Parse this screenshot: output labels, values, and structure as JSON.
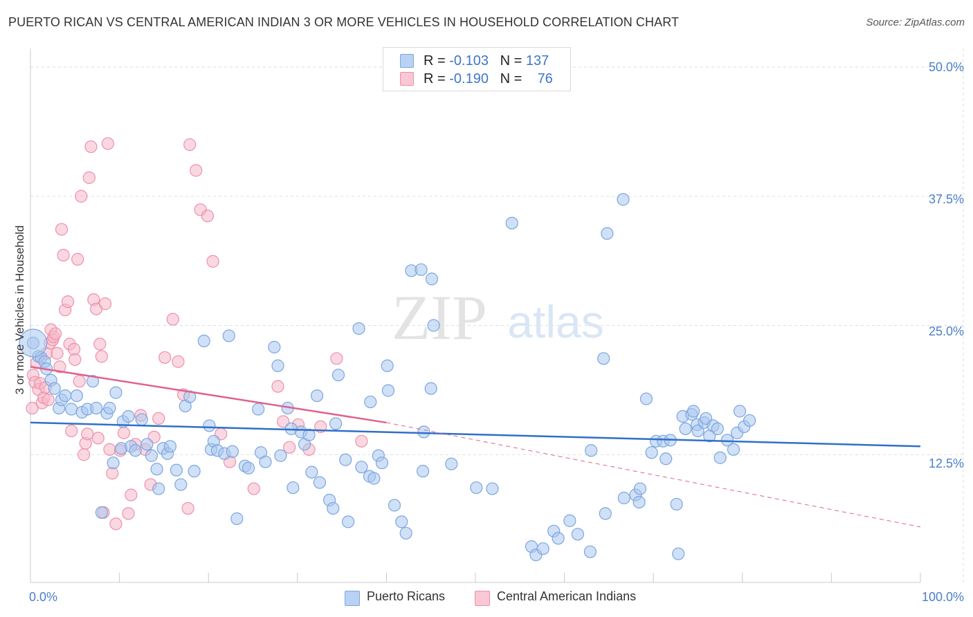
{
  "title": "PUERTO RICAN VS CENTRAL AMERICAN INDIAN 3 OR MORE VEHICLES IN HOUSEHOLD CORRELATION CHART",
  "source": "Source: ZipAtlas.com",
  "watermark": {
    "zip": "ZIP",
    "atlas": "atlas"
  },
  "legend": {
    "rows": [
      {
        "r_label": "R = ",
        "r_value": "-0.103",
        "n_label": "N = ",
        "n_value": "137"
      },
      {
        "r_label": "R = ",
        "r_value": "-0.190",
        "n_label": "N = ",
        "n_value": "76"
      }
    ]
  },
  "bottom_legend": [
    "Puerto Ricans",
    "Central American Indians"
  ],
  "colors": {
    "blue_fill": "#a9c7ef",
    "blue_stroke": "#7aa6e0",
    "blue_line": "#2f6fca",
    "pink_fill": "#f6b8c9",
    "pink_stroke": "#ee8fa9",
    "pink_line": "#e0628c",
    "tick_text": "#4a7fc9",
    "grid": "#dddddd"
  },
  "chart_data": {
    "type": "scatter",
    "title": "PUERTO RICAN VS CENTRAL AMERICAN INDIAN 3 OR MORE VEHICLES IN HOUSEHOLD CORRELATION CHART",
    "xlabel": "",
    "ylabel": "3 or more Vehicles in Household",
    "xlim": [
      0,
      100
    ],
    "ylim": [
      0,
      50
    ],
    "x_tick_labels": [
      "0.0%",
      "100.0%"
    ],
    "y_ticks": [
      12.5,
      25.0,
      37.5,
      50.0
    ],
    "y_tick_labels": [
      "12.5%",
      "25.0%",
      "37.5%",
      "50.0%"
    ],
    "grid": true,
    "legend_position": "top-center",
    "series": [
      {
        "name": "Puerto Ricans",
        "r": -0.103,
        "n": 137,
        "trend": {
          "x": [
            0,
            100
          ],
          "y": [
            15.6,
            13.3
          ]
        },
        "points": [
          [
            0.3,
            23.3
          ],
          [
            0.9,
            22.0
          ],
          [
            1.2,
            21.9
          ],
          [
            1.6,
            21.5
          ],
          [
            1.8,
            20.8
          ],
          [
            2.3,
            19.7
          ],
          [
            2.7,
            18.9
          ],
          [
            3.2,
            17.0
          ],
          [
            3.5,
            17.8
          ],
          [
            3.9,
            18.2
          ],
          [
            4.6,
            16.9
          ],
          [
            5.2,
            18.2
          ],
          [
            5.8,
            16.6
          ],
          [
            6.4,
            16.9
          ],
          [
            7.0,
            19.6
          ],
          [
            7.4,
            17.0
          ],
          [
            8.0,
            6.9
          ],
          [
            8.6,
            16.5
          ],
          [
            8.9,
            17.0
          ],
          [
            9.3,
            11.7
          ],
          [
            9.6,
            18.5
          ],
          [
            10.2,
            13.1
          ],
          [
            10.4,
            15.7
          ],
          [
            11.0,
            16.2
          ],
          [
            11.3,
            13.3
          ],
          [
            11.8,
            12.9
          ],
          [
            12.5,
            15.9
          ],
          [
            13.1,
            13.5
          ],
          [
            13.6,
            12.4
          ],
          [
            14.2,
            11.1
          ],
          [
            14.4,
            9.2
          ],
          [
            14.9,
            13.1
          ],
          [
            15.4,
            12.6
          ],
          [
            15.7,
            13.3
          ],
          [
            16.4,
            11.0
          ],
          [
            16.9,
            9.6
          ],
          [
            17.4,
            17.2
          ],
          [
            17.9,
            18.1
          ],
          [
            18.4,
            10.9
          ],
          [
            19.5,
            23.5
          ],
          [
            20.1,
            15.3
          ],
          [
            20.3,
            13.0
          ],
          [
            20.6,
            13.8
          ],
          [
            21.0,
            12.9
          ],
          [
            21.8,
            12.6
          ],
          [
            22.3,
            24.0
          ],
          [
            22.7,
            12.8
          ],
          [
            23.2,
            6.3
          ],
          [
            24.1,
            11.4
          ],
          [
            24.5,
            11.2
          ],
          [
            25.6,
            16.9
          ],
          [
            25.9,
            12.7
          ],
          [
            26.4,
            11.8
          ],
          [
            27.4,
            22.9
          ],
          [
            27.8,
            21.1
          ],
          [
            28.1,
            12.4
          ],
          [
            28.9,
            17.0
          ],
          [
            29.3,
            15.0
          ],
          [
            29.5,
            9.3
          ],
          [
            30.4,
            14.7
          ],
          [
            30.8,
            13.5
          ],
          [
            31.3,
            14.4
          ],
          [
            31.6,
            10.8
          ],
          [
            32.2,
            18.2
          ],
          [
            32.5,
            9.8
          ],
          [
            33.6,
            8.1
          ],
          [
            34.0,
            7.3
          ],
          [
            34.3,
            15.5
          ],
          [
            34.6,
            20.2
          ],
          [
            35.4,
            12.0
          ],
          [
            35.7,
            6.0
          ],
          [
            36.9,
            24.7
          ],
          [
            37.2,
            11.3
          ],
          [
            38.1,
            10.4
          ],
          [
            38.2,
            17.6
          ],
          [
            38.6,
            10.2
          ],
          [
            39.1,
            12.4
          ],
          [
            39.5,
            11.7
          ],
          [
            40.1,
            21.1
          ],
          [
            40.2,
            18.7
          ],
          [
            40.9,
            7.6
          ],
          [
            41.7,
            6.0
          ],
          [
            42.2,
            4.9
          ],
          [
            42.8,
            30.3
          ],
          [
            43.9,
            30.4
          ],
          [
            44.1,
            10.9
          ],
          [
            44.2,
            14.7
          ],
          [
            45.0,
            18.9
          ],
          [
            45.1,
            29.5
          ],
          [
            45.3,
            25.0
          ],
          [
            47.3,
            11.6
          ],
          [
            50.1,
            9.3
          ],
          [
            51.9,
            9.2
          ],
          [
            54.1,
            34.9
          ],
          [
            56.3,
            3.6
          ],
          [
            56.8,
            2.8
          ],
          [
            57.6,
            3.4
          ],
          [
            58.8,
            5.1
          ],
          [
            59.3,
            4.4
          ],
          [
            60.6,
            6.1
          ],
          [
            61.5,
            4.8
          ],
          [
            62.9,
            3.1
          ],
          [
            63.0,
            12.9
          ],
          [
            64.4,
            21.8
          ],
          [
            64.6,
            6.8
          ],
          [
            64.8,
            33.9
          ],
          [
            66.6,
            37.2
          ],
          [
            66.7,
            8.3
          ],
          [
            68.0,
            8.6
          ],
          [
            68.4,
            7.9
          ],
          [
            68.5,
            9.2
          ],
          [
            69.2,
            17.9
          ],
          [
            69.8,
            12.7
          ],
          [
            70.3,
            13.8
          ],
          [
            71.1,
            13.8
          ],
          [
            71.4,
            12.1
          ],
          [
            71.9,
            13.9
          ],
          [
            72.6,
            7.7
          ],
          [
            72.8,
            2.9
          ],
          [
            73.3,
            16.2
          ],
          [
            73.6,
            15.0
          ],
          [
            74.3,
            16.4
          ],
          [
            74.5,
            16.7
          ],
          [
            74.9,
            15.4
          ],
          [
            75.0,
            14.8
          ],
          [
            75.7,
            15.6
          ],
          [
            75.9,
            16.0
          ],
          [
            76.3,
            14.3
          ],
          [
            76.7,
            15.3
          ],
          [
            77.2,
            15.0
          ],
          [
            77.5,
            12.2
          ],
          [
            78.3,
            13.9
          ],
          [
            79.0,
            13.0
          ],
          [
            79.4,
            14.6
          ],
          [
            79.7,
            16.7
          ],
          [
            80.2,
            15.2
          ],
          [
            80.8,
            15.8
          ]
        ]
      },
      {
        "name": "Central American Indians",
        "r": -0.19,
        "n": 76,
        "trend": {
          "x": [
            0,
            40
          ],
          "y": [
            21.0,
            15.6
          ]
        },
        "trend_extended": {
          "x": [
            40,
            100
          ],
          "y": [
            15.6,
            5.5
          ]
        },
        "points": [
          [
            0.2,
            17.0
          ],
          [
            0.3,
            20.2
          ],
          [
            0.5,
            19.5
          ],
          [
            0.7,
            21.4
          ],
          [
            0.9,
            18.8
          ],
          [
            1.1,
            19.4
          ],
          [
            1.3,
            17.5
          ],
          [
            1.5,
            18.0
          ],
          [
            1.7,
            19.0
          ],
          [
            1.8,
            22.3
          ],
          [
            2.0,
            17.8
          ],
          [
            2.2,
            23.3
          ],
          [
            2.3,
            24.6
          ],
          [
            2.5,
            23.6
          ],
          [
            2.6,
            23.9
          ],
          [
            2.8,
            24.2
          ],
          [
            3.0,
            22.3
          ],
          [
            3.3,
            21.0
          ],
          [
            3.5,
            34.3
          ],
          [
            3.7,
            31.8
          ],
          [
            3.9,
            26.5
          ],
          [
            4.2,
            27.3
          ],
          [
            4.4,
            23.2
          ],
          [
            4.6,
            14.8
          ],
          [
            4.9,
            22.7
          ],
          [
            5.0,
            21.7
          ],
          [
            5.3,
            31.4
          ],
          [
            5.5,
            19.6
          ],
          [
            5.7,
            37.5
          ],
          [
            6.0,
            12.5
          ],
          [
            6.2,
            13.6
          ],
          [
            6.4,
            14.5
          ],
          [
            6.6,
            39.3
          ],
          [
            6.8,
            42.3
          ],
          [
            7.1,
            27.5
          ],
          [
            7.4,
            26.6
          ],
          [
            7.6,
            14.1
          ],
          [
            7.8,
            23.2
          ],
          [
            8.0,
            22.0
          ],
          [
            8.2,
            6.9
          ],
          [
            8.4,
            27.1
          ],
          [
            8.7,
            42.6
          ],
          [
            8.9,
            13.0
          ],
          [
            9.2,
            10.7
          ],
          [
            9.6,
            5.8
          ],
          [
            10.1,
            12.9
          ],
          [
            10.5,
            14.6
          ],
          [
            11.0,
            6.8
          ],
          [
            11.3,
            8.6
          ],
          [
            11.8,
            13.5
          ],
          [
            12.4,
            16.3
          ],
          [
            12.9,
            13.0
          ],
          [
            13.5,
            9.6
          ],
          [
            13.9,
            14.2
          ],
          [
            14.4,
            16.0
          ],
          [
            15.1,
            21.9
          ],
          [
            16.0,
            25.6
          ],
          [
            16.6,
            21.5
          ],
          [
            17.2,
            18.3
          ],
          [
            17.7,
            7.3
          ],
          [
            17.9,
            42.5
          ],
          [
            18.6,
            40.0
          ],
          [
            19.1,
            36.2
          ],
          [
            19.9,
            35.6
          ],
          [
            20.5,
            31.2
          ],
          [
            21.4,
            14.5
          ],
          [
            22.4,
            11.8
          ],
          [
            25.1,
            9.2
          ],
          [
            27.8,
            19.1
          ],
          [
            28.4,
            15.7
          ],
          [
            29.1,
            13.2
          ],
          [
            30.1,
            15.4
          ],
          [
            31.3,
            13.0
          ],
          [
            32.6,
            15.2
          ],
          [
            34.4,
            21.8
          ],
          [
            37.2,
            13.8
          ]
        ]
      }
    ]
  }
}
